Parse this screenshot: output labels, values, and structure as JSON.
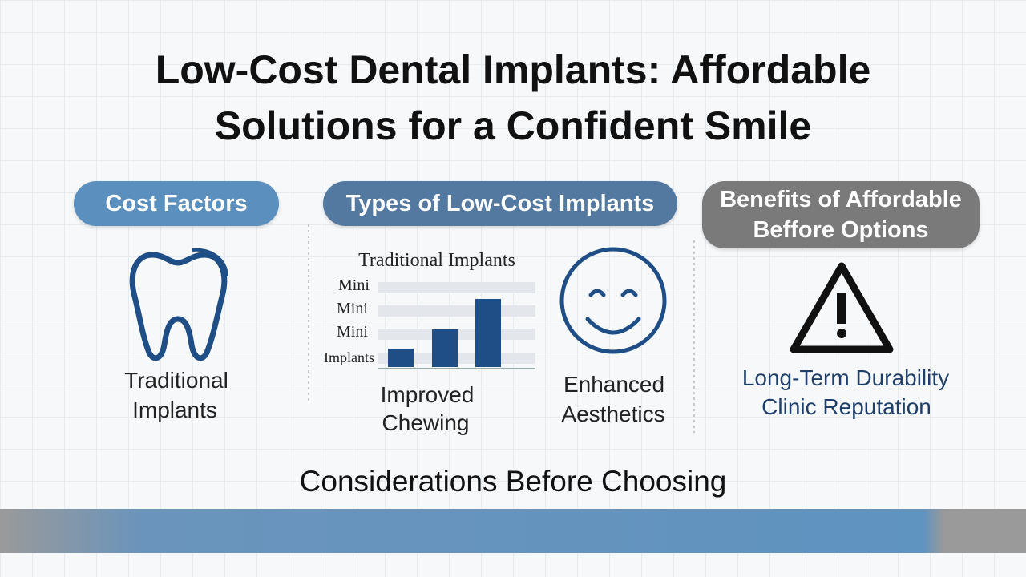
{
  "header": {
    "title_lines": [
      "Low-Cost Dental Implants: Affordable",
      "Solutions for a Confident Smile"
    ]
  },
  "sections": [
    {
      "heading": "Cost Factors",
      "label_lines": [
        "Traditional",
        "Implants"
      ]
    },
    {
      "heading": "Types of Low-Cost Implants",
      "chart_title": "Traditional Implants",
      "chart_labels": [
        "Mini",
        "Mini",
        "Mini",
        "Implants"
      ],
      "items": [
        [
          "Improved",
          "Chewing"
        ],
        [
          "Enhanced",
          "Aesthetics"
        ]
      ]
    },
    {
      "heading_lines": [
        "Benefits of Affordable",
        "Beffore Options"
      ],
      "label_lines": [
        "Long-Term Durability",
        "Clinic Reputation"
      ]
    }
  ],
  "footer": "Considerations Before Choosing"
}
